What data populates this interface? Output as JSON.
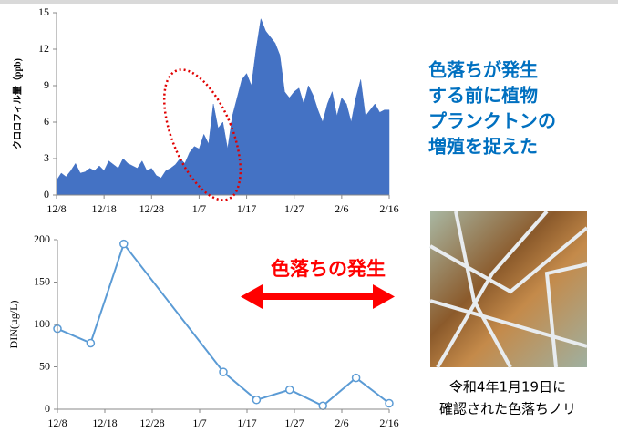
{
  "chart_data": [
    {
      "type": "area",
      "y_label": "クロロフィル量（ppb)",
      "color": "#4472c4",
      "x": [
        0,
        1,
        2,
        3,
        4,
        5,
        6,
        7,
        8,
        9,
        10,
        11,
        12,
        13,
        14,
        15,
        16,
        17,
        18,
        19,
        20,
        21,
        22,
        23,
        24,
        25,
        26,
        27,
        28,
        29,
        30,
        31,
        32,
        33,
        34,
        35,
        36,
        37,
        38,
        39,
        40,
        41,
        42,
        43,
        44,
        45,
        46,
        47,
        48,
        49,
        50,
        51,
        52,
        53,
        54,
        55,
        56,
        57,
        58,
        59,
        60,
        61,
        62,
        63,
        64,
        65,
        66,
        67,
        68,
        69,
        70
      ],
      "values": [
        1.2,
        1.8,
        1.5,
        2.0,
        2.6,
        1.8,
        1.9,
        2.2,
        2.0,
        2.4,
        2.0,
        2.8,
        2.5,
        2.2,
        3.0,
        2.6,
        2.4,
        2.2,
        2.8,
        2.0,
        2.2,
        1.6,
        1.4,
        2.0,
        2.2,
        2.5,
        3.0,
        2.6,
        3.5,
        4.0,
        3.8,
        5.0,
        4.2,
        7.5,
        5.5,
        6.0,
        3.8,
        6.5,
        8.0,
        9.5,
        10.0,
        9.0,
        12.0,
        14.5,
        13.5,
        13.0,
        12.5,
        11.5,
        8.5,
        8.0,
        8.5,
        8.8,
        7.5,
        9.0,
        8.2,
        7.0,
        6.0,
        7.5,
        8.5,
        6.5,
        8.0,
        7.5,
        6.0,
        8.0,
        9.5,
        6.5,
        7.0,
        7.5,
        6.8,
        7.0,
        7.0
      ],
      "xlim": [
        0,
        70
      ],
      "xticks": [
        {
          "value": 0,
          "label": "12/8"
        },
        {
          "value": 10,
          "label": "12/18"
        },
        {
          "value": 20,
          "label": "12/28"
        },
        {
          "value": 30,
          "label": "1/7"
        },
        {
          "value": 40,
          "label": "1/17"
        },
        {
          "value": 50,
          "label": "1/27"
        },
        {
          "value": 60,
          "label": "2/6"
        },
        {
          "value": 70,
          "label": "2/16"
        }
      ],
      "ylim": [
        0,
        15
      ],
      "yticks": [
        0,
        3,
        6,
        9,
        12,
        15
      ]
    },
    {
      "type": "line",
      "y_label": "DIN(µg/L)",
      "color": "#5b9bd5",
      "x": [
        0,
        7,
        14,
        35,
        42,
        49,
        56,
        63,
        70
      ],
      "values": [
        95,
        78,
        195,
        44,
        11,
        23,
        4,
        37,
        7
      ],
      "xlim": [
        0,
        70
      ],
      "xticks": [
        {
          "value": 0,
          "label": "12/8"
        },
        {
          "value": 10,
          "label": "12/18"
        },
        {
          "value": 20,
          "label": "12/28"
        },
        {
          "value": 30,
          "label": "1/7"
        },
        {
          "value": 40,
          "label": "1/17"
        },
        {
          "value": 50,
          "label": "1/27"
        },
        {
          "value": 60,
          "label": "2/6"
        },
        {
          "value": 70,
          "label": "2/16"
        }
      ],
      "ylim": [
        0,
        200
      ],
      "yticks": [
        0,
        50,
        100,
        150,
        200
      ]
    }
  ],
  "annotations": {
    "message_lines": [
      "色落ちが発生",
      "する前に植物",
      "プランクトンの",
      "増殖を捉えた"
    ],
    "event_label": "色落ちの発生",
    "photo_caption_lines": [
      "令和4年1月19日に",
      "確認された色落ちノリ"
    ]
  }
}
